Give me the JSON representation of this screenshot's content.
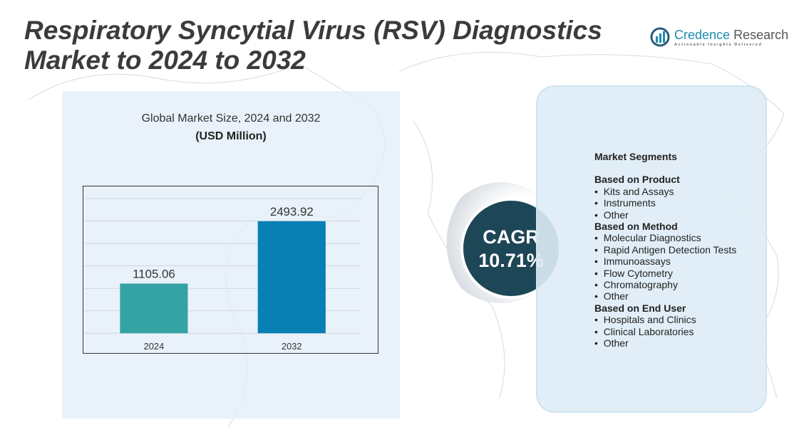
{
  "title": "Respiratory Syncytial Virus (RSV) Diagnostics Market to 2024 to 2032",
  "logo": {
    "name_a": "Credence",
    "name_b": "Research",
    "tagline": "Actionable Insights Delivered"
  },
  "chart_data": {
    "type": "bar",
    "title": "Global Market Size, 2024 and 2032",
    "subtitle": "(USD Million)",
    "categories": [
      "2024",
      "2032"
    ],
    "values": [
      1105.06,
      2493.92
    ],
    "data_labels": [
      "1105.06",
      "2493.92"
    ],
    "colors": [
      "#35a3a3",
      "#0880b3"
    ],
    "ylim": [
      0,
      3000
    ],
    "grid": true,
    "grid_step": 500
  },
  "cagr": {
    "label": "CAGR",
    "value": "10.71%"
  },
  "segments": {
    "heading": "Market Segments",
    "groups": [
      {
        "title": "Based on Product",
        "items": [
          "Kits and Assays",
          "Instruments",
          "Other"
        ]
      },
      {
        "title": "Based on Method",
        "items": [
          "Molecular Diagnostics",
          "Rapid Antigen Detection Tests",
          "Immunoassays",
          "Flow Cytometry",
          "Chromatography",
          "Other"
        ]
      },
      {
        "title": "Based on End User",
        "items": [
          "Hospitals and Clinics",
          "Clinical Laboratories",
          "Other"
        ]
      }
    ]
  }
}
